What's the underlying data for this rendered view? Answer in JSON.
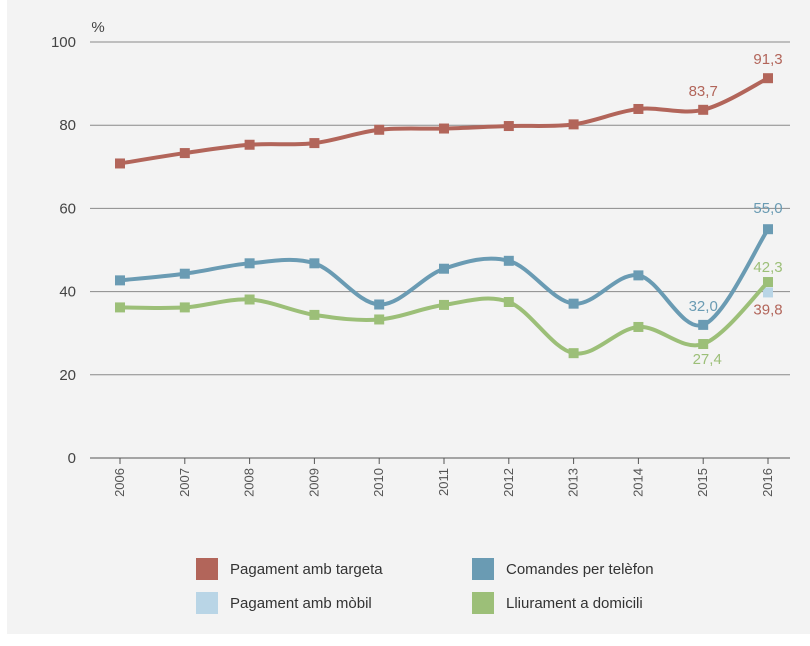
{
  "chart_data": {
    "type": "line",
    "title": "",
    "xlabel": "",
    "ylabel": "%",
    "ylim": [
      0,
      100
    ],
    "yticks": [
      0,
      20,
      40,
      60,
      80,
      100
    ],
    "categories": [
      "2006",
      "2007",
      "2008",
      "2009",
      "2010",
      "2011",
      "2012",
      "2013",
      "2014",
      "2015",
      "2016"
    ],
    "grid": "horizontal",
    "legend_position": "bottom",
    "series": [
      {
        "name": "Pagament amb targeta",
        "color": "#b2655a",
        "values": [
          70.8,
          73.3,
          75.3,
          75.7,
          78.9,
          79.2,
          79.8,
          80.2,
          83.9,
          83.7,
          91.3
        ],
        "labels": {
          "9": "83,7",
          "10": "91,3"
        }
      },
      {
        "name": "Comandes per telèfon",
        "color": "#6a9bb3",
        "values": [
          42.7,
          44.3,
          46.8,
          46.8,
          36.9,
          45.5,
          47.4,
          37.1,
          43.9,
          32.0,
          55.0
        ],
        "labels": {
          "9": "32,0",
          "10": "55,0"
        }
      },
      {
        "name": "Pagament amb mòbil",
        "color": "#b9d5e6",
        "values": [
          null,
          null,
          null,
          null,
          null,
          null,
          null,
          null,
          null,
          null,
          39.8
        ],
        "labels": {
          "10": "39,8"
        }
      },
      {
        "name": "Lliurament a domicili",
        "color": "#9cbf78",
        "values": [
          36.2,
          36.2,
          38.1,
          34.4,
          33.3,
          36.8,
          37.5,
          25.2,
          31.5,
          27.4,
          42.3
        ],
        "labels": {
          "9": "27,4",
          "10": "42,3"
        }
      }
    ]
  }
}
